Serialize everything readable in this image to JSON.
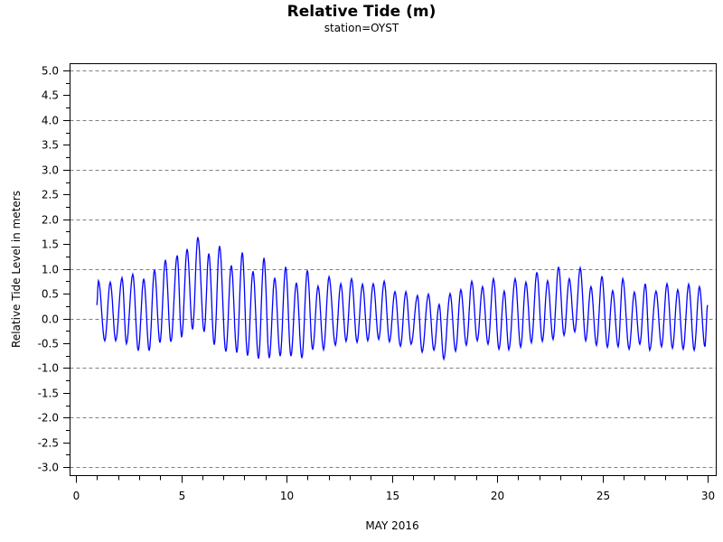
{
  "chart_data": {
    "type": "line",
    "title": "Relative Tide (m)",
    "subtitle": "station=OYST",
    "xlabel": "MAY 2016",
    "ylabel": "Relative Tide Level in meters",
    "xlim": [
      0,
      30
    ],
    "ylim": [
      -3.0,
      5.0
    ],
    "x_ticks": [
      "0",
      "5",
      "10",
      "15",
      "20",
      "25",
      "30"
    ],
    "y_ticks": [
      "5.0",
      "4.5",
      "4.0",
      "3.5",
      "3.0",
      "2.5",
      "2.0",
      "1.5",
      "1.0",
      "0.5",
      "0.0",
      "-0.5",
      "-1.0",
      "-1.5",
      "-2.0",
      "-2.5",
      "-3.0"
    ],
    "grid": "horizontal dashed at whole meters",
    "legend": "none",
    "line_color": "#0000ff",
    "series": [
      {
        "description_of_points": "high/low tide extrema [day, meters]",
        "points": [
          [
            0.99,
            0.27
          ],
          [
            1.07,
            0.76
          ],
          [
            1.37,
            -0.45
          ],
          [
            1.63,
            0.73
          ],
          [
            1.89,
            -0.45
          ],
          [
            2.19,
            0.82
          ],
          [
            2.4,
            -0.51
          ],
          [
            2.7,
            0.89
          ],
          [
            2.96,
            -0.65
          ],
          [
            3.22,
            0.8
          ],
          [
            3.48,
            -0.65
          ],
          [
            3.73,
            0.98
          ],
          [
            3.99,
            -0.49
          ],
          [
            4.25,
            1.18
          ],
          [
            4.51,
            -0.47
          ],
          [
            4.81,
            1.27
          ],
          [
            5.02,
            -0.38
          ],
          [
            5.28,
            1.4
          ],
          [
            5.54,
            -0.22
          ],
          [
            5.79,
            1.64
          ],
          [
            6.09,
            -0.27
          ],
          [
            6.31,
            1.31
          ],
          [
            6.57,
            -0.53
          ],
          [
            6.82,
            1.46
          ],
          [
            7.12,
            -0.67
          ],
          [
            7.38,
            1.07
          ],
          [
            7.64,
            -0.69
          ],
          [
            7.9,
            1.33
          ],
          [
            8.15,
            -0.75
          ],
          [
            8.41,
            0.95
          ],
          [
            8.67,
            -0.81
          ],
          [
            8.93,
            1.22
          ],
          [
            9.18,
            -0.8
          ],
          [
            9.44,
            0.82
          ],
          [
            9.7,
            -0.76
          ],
          [
            9.96,
            1.04
          ],
          [
            10.21,
            -0.76
          ],
          [
            10.47,
            0.72
          ],
          [
            10.73,
            -0.8
          ],
          [
            10.99,
            0.97
          ],
          [
            11.24,
            -0.63
          ],
          [
            11.5,
            0.65
          ],
          [
            11.76,
            -0.63
          ],
          [
            12.02,
            0.84
          ],
          [
            12.32,
            -0.54
          ],
          [
            12.58,
            0.7
          ],
          [
            12.83,
            -0.46
          ],
          [
            13.09,
            0.8
          ],
          [
            13.35,
            -0.48
          ],
          [
            13.61,
            0.69
          ],
          [
            13.86,
            -0.45
          ],
          [
            14.12,
            0.7
          ],
          [
            14.38,
            -0.42
          ],
          [
            14.64,
            0.75
          ],
          [
            14.89,
            -0.47
          ],
          [
            15.15,
            0.54
          ],
          [
            15.41,
            -0.56
          ],
          [
            15.67,
            0.54
          ],
          [
            15.92,
            -0.52
          ],
          [
            16.22,
            0.46
          ],
          [
            16.44,
            -0.68
          ],
          [
            16.74,
            0.49
          ],
          [
            17.0,
            -0.64
          ],
          [
            17.25,
            0.28
          ],
          [
            17.47,
            -0.82
          ],
          [
            17.77,
            0.5
          ],
          [
            18.03,
            -0.66
          ],
          [
            18.28,
            0.58
          ],
          [
            18.54,
            -0.54
          ],
          [
            18.8,
            0.75
          ],
          [
            19.06,
            -0.45
          ],
          [
            19.31,
            0.64
          ],
          [
            19.57,
            -0.52
          ],
          [
            19.83,
            0.8
          ],
          [
            20.09,
            -0.62
          ],
          [
            20.34,
            0.55
          ],
          [
            20.56,
            -0.63
          ],
          [
            20.86,
            0.8
          ],
          [
            21.12,
            -0.58
          ],
          [
            21.37,
            0.73
          ],
          [
            21.63,
            -0.49
          ],
          [
            21.89,
            0.93
          ],
          [
            22.15,
            -0.46
          ],
          [
            22.4,
            0.76
          ],
          [
            22.66,
            -0.42
          ],
          [
            22.92,
            1.04
          ],
          [
            23.18,
            -0.34
          ],
          [
            23.43,
            0.8
          ],
          [
            23.69,
            -0.27
          ],
          [
            23.95,
            1.02
          ],
          [
            24.21,
            -0.45
          ],
          [
            24.46,
            0.64
          ],
          [
            24.72,
            -0.54
          ],
          [
            24.98,
            0.85
          ],
          [
            25.24,
            -0.58
          ],
          [
            25.49,
            0.56
          ],
          [
            25.75,
            -0.57
          ],
          [
            25.97,
            0.8
          ],
          [
            26.27,
            -0.62
          ],
          [
            26.52,
            0.53
          ],
          [
            26.78,
            -0.52
          ],
          [
            27.04,
            0.7
          ],
          [
            27.25,
            -0.64
          ],
          [
            27.55,
            0.55
          ],
          [
            27.81,
            -0.57
          ],
          [
            28.07,
            0.7
          ],
          [
            28.33,
            -0.6
          ],
          [
            28.58,
            0.58
          ],
          [
            28.84,
            -0.62
          ],
          [
            29.1,
            0.69
          ],
          [
            29.36,
            -0.64
          ],
          [
            29.61,
            0.64
          ],
          [
            29.87,
            -0.57
          ],
          [
            30.0,
            0.27
          ]
        ]
      }
    ]
  }
}
